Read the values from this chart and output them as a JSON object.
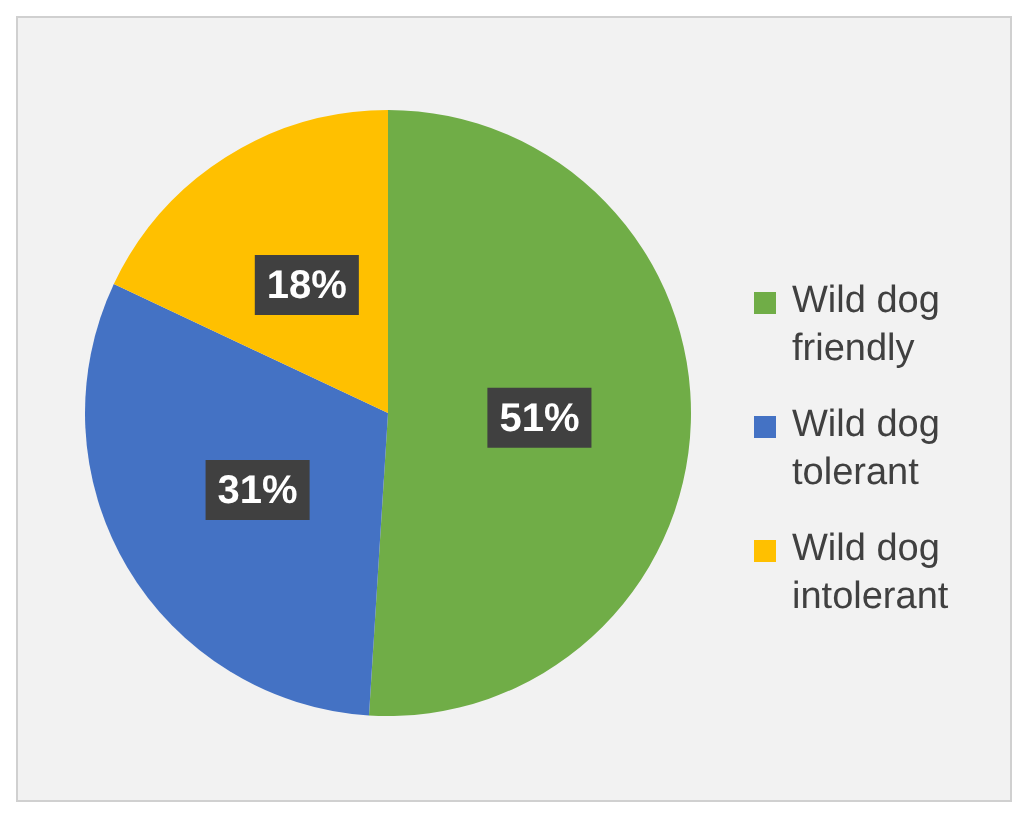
{
  "chart_data": {
    "type": "pie",
    "categories": [
      "Wild dog friendly",
      "Wild dog tolerant",
      "Wild dog intolerant"
    ],
    "values": [
      51,
      31,
      18
    ],
    "colors": [
      "#70ad47",
      "#4472c4",
      "#ffc000"
    ],
    "value_labels": [
      "51%",
      "31%",
      "18%"
    ],
    "legend": "right"
  }
}
